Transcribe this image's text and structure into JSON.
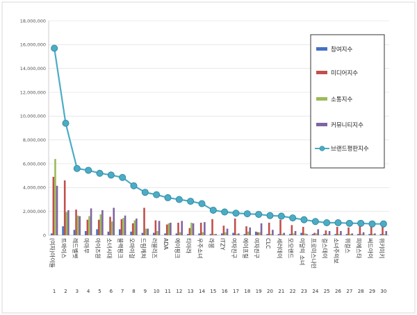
{
  "chart_data": {
    "type": "bar",
    "title": "",
    "xlabel": "",
    "ylabel": "",
    "ylim": [
      0,
      18000000
    ],
    "y_ticks": [
      "0",
      "2,000,000",
      "4,000,000",
      "6,000,000",
      "8,000,000",
      "10,000,000",
      "12,000,000",
      "14,000,000",
      "16,000,000",
      "18,000,000"
    ],
    "grid": true,
    "legend_position": "right",
    "numbers": [
      "1",
      "2",
      "3",
      "4",
      "5",
      "6",
      "7",
      "8",
      "9",
      "10",
      "11",
      "12",
      "13",
      "14",
      "15",
      "16",
      "17",
      "18",
      "19",
      "20",
      "21",
      "22",
      "23",
      "24",
      "25",
      "26",
      "27",
      "28",
      "29",
      "30"
    ],
    "categories": [
      "(여자)아이들",
      "트와이스",
      "레드벨벳",
      "마마무",
      "아이즈원",
      "소녀시대",
      "블랙핑크",
      "오마이걸",
      "드림캐쳐",
      "러블리즈",
      "ADA",
      "에이핑크",
      "티아라",
      "우주소녀",
      "라붐",
      "ITZY",
      "여자친구",
      "에이프릴",
      "여자친구",
      "CLC",
      "세러데이",
      "모모랜드",
      "이달의 소녀",
      "프로미스나인",
      "걸스데이",
      "소녀주의보",
      "위걸스",
      "피에스타",
      "써드아이",
      "위키미키"
    ],
    "series": [
      {
        "name": "참여지수",
        "color": "#4472c4",
        "values": [
          150000,
          750000,
          450000,
          350000,
          500000,
          300000,
          500000,
          300000,
          200000,
          200000,
          150000,
          150000,
          100000,
          150000,
          100000,
          150000,
          200000,
          100000,
          300000,
          100000,
          100000,
          100000,
          200000,
          100000,
          100000,
          100000,
          100000,
          100000,
          100000,
          100000
        ]
      },
      {
        "name": "미디어지수",
        "color": "#c0504d",
        "values": [
          4900000,
          4600000,
          2150000,
          1300000,
          1300000,
          1550000,
          1350000,
          1000000,
          2300000,
          1250000,
          900000,
          1050000,
          600000,
          1050000,
          1350000,
          800000,
          1400000,
          750000,
          250000,
          1050000,
          1300000,
          850000,
          700000,
          200000,
          400000,
          700000,
          650000,
          750000,
          750000,
          700000
        ]
      },
      {
        "name": "소통지수",
        "color": "#9bbb59",
        "values": [
          6400000,
          1950000,
          1650000,
          1600000,
          1750000,
          1150000,
          1450000,
          1250000,
          550000,
          350000,
          1000000,
          250000,
          1050000,
          250000,
          100000,
          250000,
          100000,
          300000,
          250000,
          100000,
          100000,
          150000,
          150000,
          150000,
          100000,
          100000,
          100000,
          100000,
          100000,
          100000
        ]
      },
      {
        "name": "커뮤니티지수",
        "color": "#8064a2",
        "values": [
          4150000,
          2100000,
          1600000,
          2250000,
          2100000,
          2300000,
          1650000,
          1400000,
          550000,
          1200000,
          1050000,
          1200000,
          1000000,
          1100000,
          100000,
          550000,
          150000,
          650000,
          1000000,
          450000,
          200000,
          350000,
          100000,
          500000,
          350000,
          350000,
          150000,
          250000,
          150000,
          350000
        ]
      },
      {
        "name": "브랜드평판지수",
        "color": "#4bacc6",
        "values": [
          15700000,
          9400000,
          5600000,
          5450000,
          5200000,
          5050000,
          4850000,
          4150000,
          3600000,
          3400000,
          3150000,
          3000000,
          2850000,
          2650000,
          2100000,
          1950000,
          1850000,
          1800000,
          1750000,
          1650000,
          1600000,
          1450000,
          1300000,
          1150000,
          1050000,
          1050000,
          1000000,
          1000000,
          950000,
          950000
        ]
      }
    ]
  }
}
